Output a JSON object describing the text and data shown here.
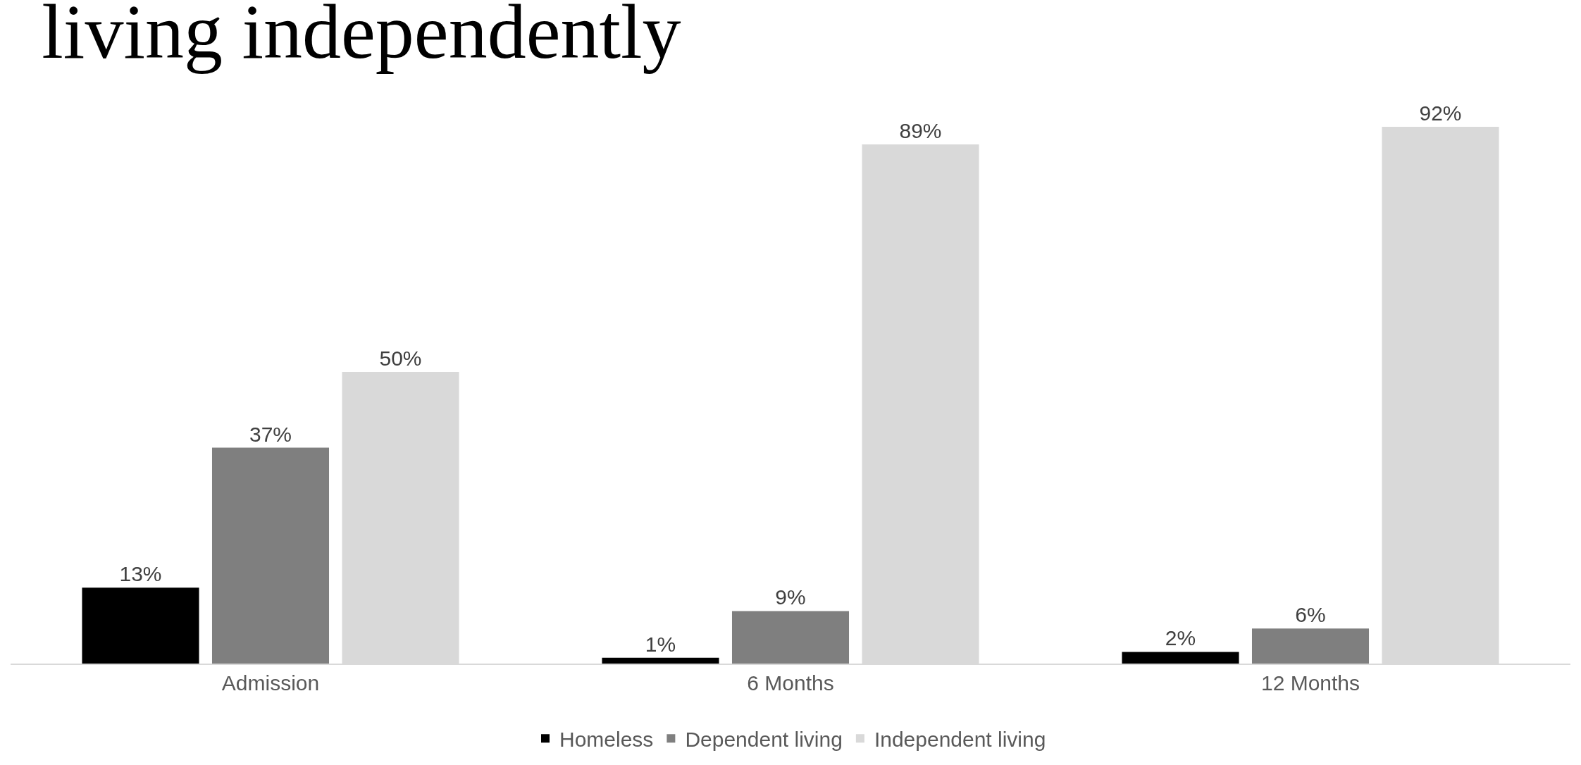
{
  "chart_data": {
    "type": "bar",
    "title": "living independently",
    "categories": [
      "Admission",
      "6 Months",
      "12 Months"
    ],
    "series": [
      {
        "name": "Homeless",
        "color": "#000000",
        "values": [
          13,
          1,
          2
        ],
        "value_labels": [
          "13%",
          "1%",
          "2%"
        ]
      },
      {
        "name": "Dependent living",
        "color": "#7f7f7f",
        "values": [
          37,
          9,
          6
        ],
        "value_labels": [
          "37%",
          "9%",
          "6%"
        ]
      },
      {
        "name": "Independent living",
        "color": "#d9d9d9",
        "values": [
          50,
          89,
          92
        ],
        "value_labels": [
          "50%",
          "89%",
          "92%"
        ]
      }
    ],
    "legend": "bottom"
  }
}
